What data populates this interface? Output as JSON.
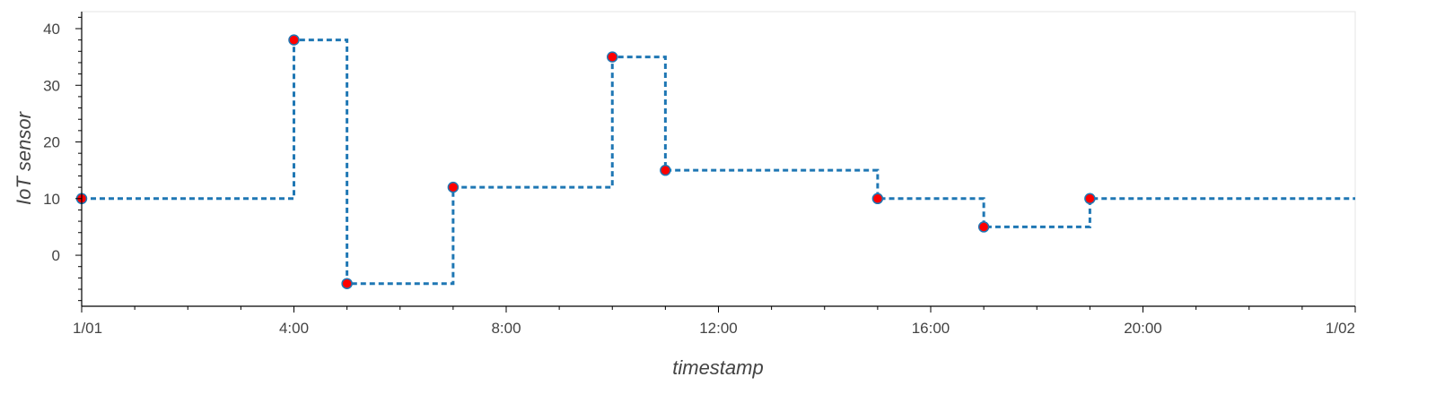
{
  "chart_data": {
    "type": "line",
    "step": "post",
    "xlabel": "timestamp",
    "ylabel": "IoT sensor",
    "xlim": [
      0,
      24
    ],
    "ylim": [
      -9,
      43
    ],
    "x_ticks": [
      {
        "value": 0,
        "label": "1/01"
      },
      {
        "value": 4,
        "label": "4:00"
      },
      {
        "value": 8,
        "label": "8:00"
      },
      {
        "value": 12,
        "label": "12:00"
      },
      {
        "value": 16,
        "label": "16:00"
      },
      {
        "value": 20,
        "label": "20:00"
      },
      {
        "value": 24,
        "label": "1/02"
      }
    ],
    "y_ticks": [
      {
        "value": 0,
        "label": "0"
      },
      {
        "value": 10,
        "label": "10"
      },
      {
        "value": 20,
        "label": "20"
      },
      {
        "value": 30,
        "label": "30"
      },
      {
        "value": 40,
        "label": "40"
      }
    ],
    "series": [
      {
        "x": [
          0,
          4,
          5,
          7,
          10,
          11,
          15,
          17,
          19
        ],
        "y": [
          10,
          38,
          -5,
          12,
          35,
          15,
          10,
          5,
          10
        ],
        "line_color": "#1f77b4",
        "line_style": "dashed",
        "marker_color": "#ff0000",
        "marker_edge_color": "#1f77b4"
      }
    ],
    "grid": false
  }
}
